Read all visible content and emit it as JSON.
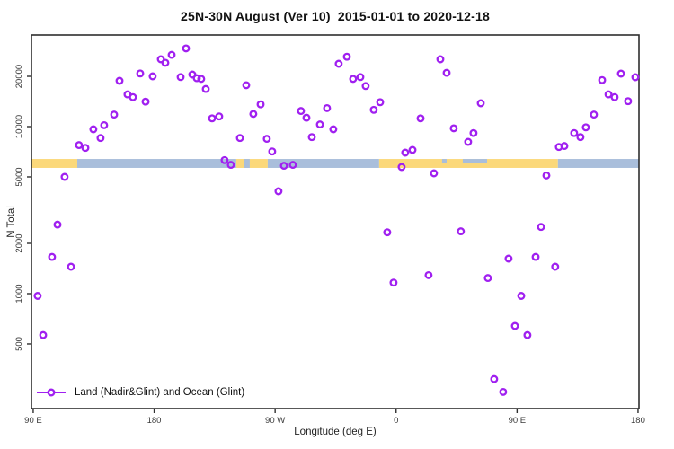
{
  "chart_data": {
    "type": "scatter",
    "title": "25N-30N August (Ver 10)  2015-01-01 to 2020-12-18",
    "xlabel": "Longitude (deg E)",
    "ylabel": "N Total",
    "legend_label": "Land (Nadir&Glint) and Ocean (Glint)",
    "legend_position": "bottom-left",
    "grid": false,
    "marker": {
      "shape": "open-circle",
      "color": "#A020F0"
    },
    "axis_color": "#2e2e2e",
    "tick_label_color": "#3a3a3a",
    "x_range": [
      88.7,
      540.7
    ],
    "y_range": [
      205,
      35350
    ],
    "y_scale": "log",
    "x_ticks": [
      {
        "value": 90,
        "label": "90 E"
      },
      {
        "value": 180,
        "label": "180"
      },
      {
        "value": 270,
        "label": "90 W"
      },
      {
        "value": 360,
        "label": "0"
      },
      {
        "value": 450,
        "label": "90 E"
      },
      {
        "value": 540,
        "label": "180"
      }
    ],
    "y_ticks": [
      {
        "value": 500,
        "label": "500"
      },
      {
        "value": 1000,
        "label": "1000"
      },
      {
        "value": 2000,
        "label": "2000"
      },
      {
        "value": 5000,
        "label": "5000"
      },
      {
        "value": 10000,
        "label": "10000"
      },
      {
        "value": 20000,
        "label": "20000"
      }
    ],
    "surface_band": {
      "description": "surface type vs longitude",
      "value_range": [
        5660,
        6400
      ],
      "colors": {
        "land": "#FBD87A",
        "ocean": "#A9BEDB"
      },
      "segments": [
        {
          "from": 88.7,
          "to": 122.8,
          "surface": "land"
        },
        {
          "from": 122.8,
          "to": 241.1,
          "surface": "ocean"
        },
        {
          "from": 241.1,
          "to": 264.5,
          "surface": "land"
        },
        {
          "from": 264.5,
          "to": 347.4,
          "surface": "ocean"
        },
        {
          "from": 347.4,
          "to": 480.4,
          "surface": "land"
        },
        {
          "from": 480.4,
          "to": 540.7,
          "surface": "ocean"
        }
      ],
      "ocean_inlets": [
        {
          "from": 247.1,
          "to": 251.1,
          "extent": "full"
        },
        {
          "from": 394.2,
          "to": 397.6,
          "extent": "top"
        },
        {
          "from": 409.6,
          "to": 427.7,
          "extent": "top"
        }
      ]
    },
    "points": [
      [
        203.7,
        29400
      ],
      [
        185.0,
        25300
      ],
      [
        188.3,
        24100
      ],
      [
        193.0,
        26900
      ],
      [
        169.6,
        20800
      ],
      [
        178.9,
        20000
      ],
      [
        154.2,
        18800
      ],
      [
        199.7,
        19800
      ],
      [
        208.4,
        20500
      ],
      [
        211.7,
        19500
      ],
      [
        215.0,
        19300
      ],
      [
        218.4,
        16800
      ],
      [
        160.2,
        15600
      ],
      [
        164.2,
        15000
      ],
      [
        173.6,
        14100
      ],
      [
        248.5,
        17700
      ],
      [
        259.2,
        13600
      ],
      [
        253.8,
        11900
      ],
      [
        223.1,
        11200
      ],
      [
        228.4,
        11500
      ],
      [
        150.2,
        11800
      ],
      [
        142.8,
        10200
      ],
      [
        134.8,
        9640
      ],
      [
        140.1,
        8550
      ],
      [
        124.1,
        7750
      ],
      [
        128.8,
        7460
      ],
      [
        243.8,
        8550
      ],
      [
        263.8,
        8450
      ],
      [
        267.8,
        7100
      ],
      [
        289.2,
        12400
      ],
      [
        293.3,
        11300
      ],
      [
        303.3,
        10300
      ],
      [
        297.3,
        8650
      ],
      [
        308.6,
        12900
      ],
      [
        313.3,
        9640
      ],
      [
        317.3,
        23800
      ],
      [
        323.4,
        26200
      ],
      [
        328.0,
        19300
      ],
      [
        333.4,
        19800
      ],
      [
        337.4,
        17500
      ],
      [
        343.4,
        12600
      ],
      [
        348.1,
        14000
      ],
      [
        378.2,
        11200
      ],
      [
        392.9,
        25300
      ],
      [
        397.6,
        21000
      ],
      [
        402.9,
        9770
      ],
      [
        413.6,
        8100
      ],
      [
        417.6,
        9150
      ],
      [
        423.0,
        13800
      ],
      [
        366.8,
        6980
      ],
      [
        372.2,
        7250
      ],
      [
        364.1,
        5730
      ],
      [
        388.2,
        5250
      ],
      [
        471.8,
        5100
      ],
      [
        481.1,
        7550
      ],
      [
        485.2,
        7650
      ],
      [
        492.5,
        9150
      ],
      [
        497.2,
        8650
      ],
      [
        501.2,
        9900
      ],
      [
        507.2,
        11800
      ],
      [
        513.3,
        19000
      ],
      [
        518.0,
        15600
      ],
      [
        522.6,
        15000
      ],
      [
        527.3,
        20750
      ],
      [
        538.0,
        19750
      ],
      [
        532.6,
        14200
      ],
      [
        232.4,
        6300
      ],
      [
        237.1,
        5900
      ],
      [
        276.6,
        5830
      ],
      [
        283.2,
        5900
      ],
      [
        272.5,
        4100
      ],
      [
        113.4,
        5000
      ],
      [
        108.1,
        2590
      ],
      [
        104.0,
        1660
      ],
      [
        118.1,
        1450
      ],
      [
        93.3,
        970
      ],
      [
        97.4,
        565
      ],
      [
        353.4,
        2330
      ],
      [
        408.2,
        2360
      ],
      [
        467.8,
        2510
      ],
      [
        443.7,
        1620
      ],
      [
        463.8,
        1660
      ],
      [
        478.4,
        1450
      ],
      [
        384.2,
        1290
      ],
      [
        428.3,
        1240
      ],
      [
        358.1,
        1165
      ],
      [
        453.1,
        970
      ],
      [
        448.4,
        640
      ],
      [
        457.7,
        565
      ],
      [
        433.0,
        308
      ],
      [
        439.7,
        258
      ]
    ]
  }
}
